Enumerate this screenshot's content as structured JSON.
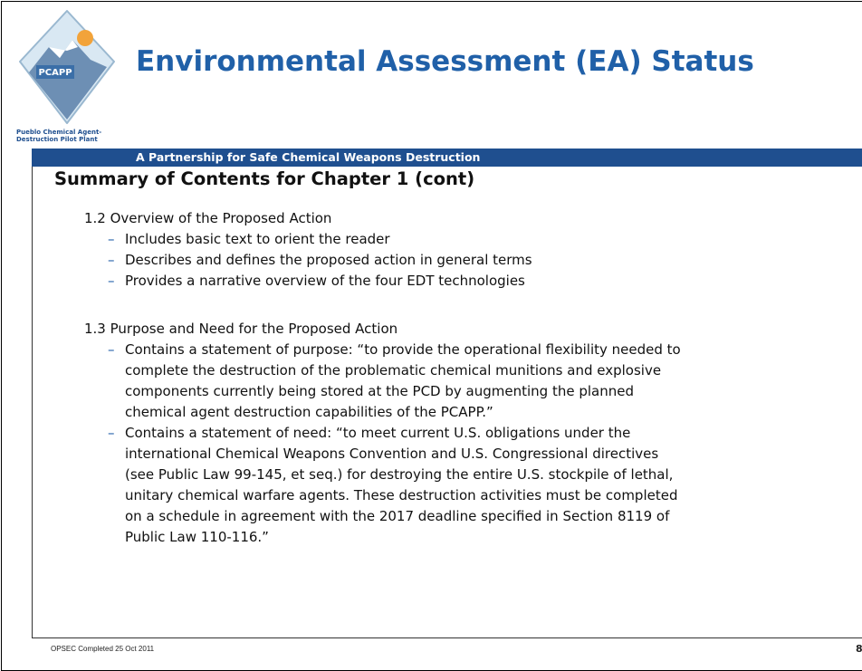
{
  "logo": {
    "label": "PCAPP",
    "caption": [
      "Pueblo Chemical Agent-",
      "Destruction Pilot Plant"
    ]
  },
  "header": {
    "title": "Environmental Assessment (EA) Status",
    "subtitle": "A Partnership for Safe Chemical Weapons Destruction"
  },
  "heading": "Summary of Contents for Chapter 1 (cont)",
  "sections": [
    {
      "title": "1.2 Overview of the Proposed Action",
      "items": [
        [
          "Includes basic text to orient the reader"
        ],
        [
          "Describes and defines the proposed action in general terms"
        ],
        [
          "Provides a narrative overview of the four EDT technologies"
        ]
      ]
    },
    {
      "title": "1.3 Purpose and Need for the Proposed Action",
      "items": [
        [
          "Contains a statement of purpose: “to provide the operational flexibility needed to",
          "complete the destruction of the problematic chemical munitions and explosive",
          "components currently being stored at the PCD by augmenting the planned",
          "chemical agent destruction capabilities of the PCAPP.”"
        ],
        [
          "Contains a statement of need: “to meet current U.S. obligations under the",
          "international Chemical Weapons Convention and U.S. Congressional directives",
          "(see Public Law 99-145, et seq.) for destroying the entire U.S. stockpile of lethal,",
          "unitary chemical warfare agents. These destruction activities must be completed",
          "on a schedule in agreement with the 2017 deadline specified in Section 8119 of",
          "Public Law 110-116.”"
        ]
      ]
    }
  ],
  "footer": {
    "note": "OPSEC Completed 25 Oct 2011",
    "page": "8"
  }
}
